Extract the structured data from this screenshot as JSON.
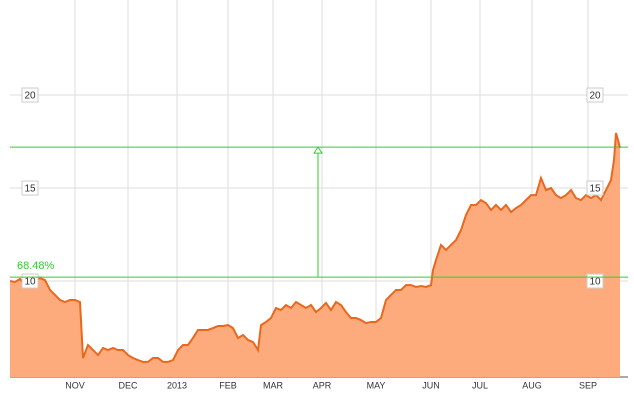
{
  "chart_data": {
    "type": "area",
    "x": [
      0,
      5,
      10,
      15,
      20,
      25,
      30,
      35,
      40,
      45,
      50,
      55,
      60,
      65,
      70,
      73,
      78,
      83,
      88,
      93,
      98,
      103,
      108,
      113,
      118,
      123,
      128,
      133,
      138,
      143,
      148,
      153,
      158,
      163,
      168,
      173,
      178,
      183,
      188,
      193,
      198,
      203,
      208,
      213,
      218,
      223,
      228,
      233,
      238,
      243,
      248,
      251,
      256,
      261,
      266,
      271,
      276,
      281,
      286,
      291,
      296,
      301,
      306,
      311,
      316,
      321,
      326,
      331,
      336,
      341,
      346,
      351,
      356,
      361,
      366,
      371,
      376,
      381,
      386,
      391,
      396,
      401,
      406,
      411,
      416,
      421,
      423,
      426,
      431,
      436,
      441,
      446,
      451,
      456,
      461,
      466,
      471,
      476,
      481,
      486,
      491,
      496,
      501,
      506,
      511,
      516,
      521,
      526,
      531,
      536,
      541,
      546,
      551,
      556,
      561,
      566,
      571,
      576,
      581,
      586,
      591,
      596,
      601,
      604,
      606,
      608,
      610
    ],
    "values": [
      10.0,
      9.95,
      10.11,
      9.78,
      10.05,
      10.05,
      10.16,
      10.05,
      9.52,
      9.25,
      8.98,
      8.87,
      8.98,
      8.98,
      8.87,
      5.86,
      6.56,
      6.29,
      6.02,
      6.4,
      6.29,
      6.4,
      6.29,
      6.29,
      6.02,
      5.86,
      5.75,
      5.65,
      5.65,
      5.86,
      5.86,
      5.65,
      5.65,
      5.75,
      6.29,
      6.56,
      6.56,
      6.94,
      7.37,
      7.37,
      7.37,
      7.47,
      7.58,
      7.58,
      7.63,
      7.47,
      6.94,
      7.1,
      6.83,
      6.72,
      6.29,
      7.63,
      7.8,
      8.01,
      8.55,
      8.44,
      8.71,
      8.55,
      8.87,
      8.71,
      8.55,
      8.71,
      8.33,
      8.55,
      8.82,
      8.44,
      8.87,
      8.71,
      8.33,
      8.01,
      8.01,
      7.9,
      7.74,
      7.8,
      7.8,
      8.01,
      8.98,
      9.25,
      9.52,
      9.52,
      9.78,
      9.78,
      9.68,
      9.73,
      9.68,
      9.78,
      10.59,
      11.13,
      11.94,
      11.67,
      11.94,
      12.2,
      12.74,
      13.55,
      14.09,
      14.09,
      14.35,
      14.19,
      13.82,
      14.09,
      13.82,
      14.09,
      13.71,
      13.92,
      14.09,
      14.35,
      14.62,
      14.62,
      15.54,
      14.89,
      15.0,
      14.62,
      14.46,
      14.62,
      14.89,
      14.46,
      14.35,
      14.62,
      14.46,
      14.62,
      14.35,
      14.89,
      15.43,
      16.51,
      17.96,
      17.58,
      17.15
    ],
    "line_color": "#e8681e",
    "fill_color": "#fdab7d",
    "xlim": [
      0,
      618
    ],
    "xticks": [
      {
        "value": 65,
        "label": "NOV"
      },
      {
        "value": 118,
        "label": "DEC"
      },
      {
        "value": 167,
        "label": "2013"
      },
      {
        "value": 218,
        "label": "FEB"
      },
      {
        "value": 263,
        "label": "MAR"
      },
      {
        "value": 312,
        "label": "APR"
      },
      {
        "value": 366,
        "label": "MAY"
      },
      {
        "value": 421,
        "label": "JUN"
      },
      {
        "value": 470,
        "label": "JUL"
      },
      {
        "value": 522,
        "label": "AUG"
      },
      {
        "value": 578,
        "label": "SEP"
      }
    ],
    "ylim": [
      4.84,
      24.84
    ],
    "yticks": [
      10,
      15,
      20
    ],
    "grid": true,
    "reference_lines": [
      10.21,
      17.2
    ],
    "reference_color": "#33cc33",
    "annotation": "68.48%"
  }
}
